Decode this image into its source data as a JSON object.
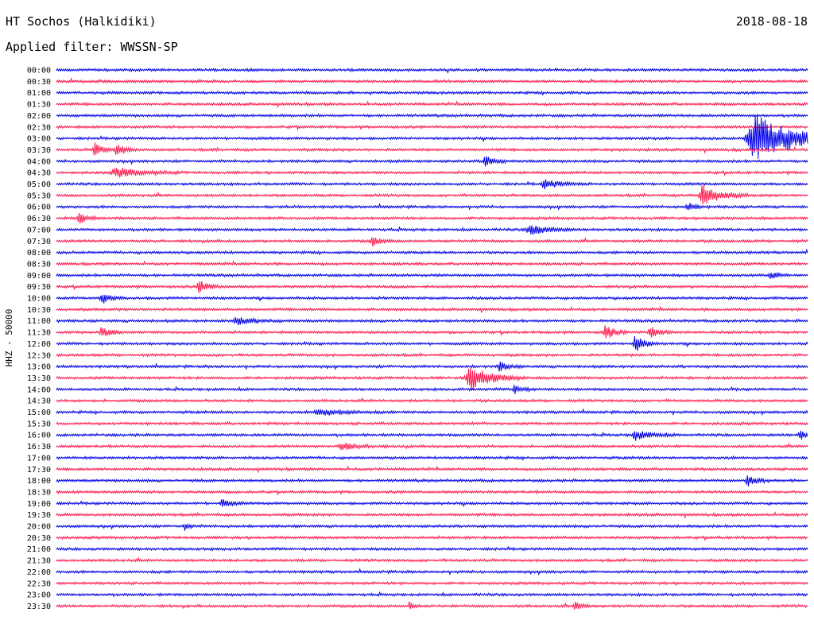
{
  "header": {
    "station": "HT Sochos (Halkidiki)",
    "date": "2018-08-18",
    "filter": "Applied filter: WWSSN-SP"
  },
  "chart_data": {
    "type": "line",
    "title": "HT Sochos (Halkidiki)",
    "ylabel": "HHZ - 50000",
    "colors": [
      "#0000e6",
      "#ff1a4d"
    ],
    "rows": [
      "00:00",
      "00:30",
      "01:00",
      "01:30",
      "02:00",
      "02:30",
      "03:00",
      "03:30",
      "04:00",
      "04:30",
      "05:00",
      "05:30",
      "06:00",
      "06:30",
      "07:00",
      "07:30",
      "08:00",
      "08:30",
      "09:00",
      "09:30",
      "10:00",
      "10:30",
      "11:00",
      "11:30",
      "12:00",
      "12:30",
      "13:00",
      "13:30",
      "14:00",
      "14:30",
      "15:00",
      "15:30",
      "16:00",
      "16:30",
      "17:00",
      "17:30",
      "18:00",
      "18:30",
      "19:00",
      "19:30",
      "20:00",
      "20:30",
      "21:00",
      "21:30",
      "22:00",
      "22:30",
      "23:00",
      "23:30"
    ],
    "events": [
      {
        "row": 6,
        "t": 0.93,
        "amp": 30,
        "width": 0.05
      },
      {
        "row": 7,
        "t": 0.05,
        "amp": 9,
        "width": 0.01
      },
      {
        "row": 7,
        "t": 0.08,
        "amp": 8,
        "width": 0.01
      },
      {
        "row": 8,
        "t": 0.57,
        "amp": 8,
        "width": 0.01
      },
      {
        "row": 9,
        "t": 0.08,
        "amp": 6,
        "width": 0.03
      },
      {
        "row": 10,
        "t": 0.65,
        "amp": 5,
        "width": 0.02
      },
      {
        "row": 11,
        "t": 0.86,
        "amp": 14,
        "width": 0.02
      },
      {
        "row": 12,
        "t": 0.84,
        "amp": 5,
        "width": 0.01
      },
      {
        "row": 13,
        "t": 0.03,
        "amp": 7,
        "width": 0.01
      },
      {
        "row": 14,
        "t": 0.63,
        "amp": 7,
        "width": 0.02
      },
      {
        "row": 15,
        "t": 0.42,
        "amp": 6,
        "width": 0.01
      },
      {
        "row": 18,
        "t": 0.95,
        "amp": 5,
        "width": 0.01
      },
      {
        "row": 19,
        "t": 0.19,
        "amp": 9,
        "width": 0.01
      },
      {
        "row": 20,
        "t": 0.06,
        "amp": 7,
        "width": 0.01
      },
      {
        "row": 22,
        "t": 0.24,
        "amp": 5,
        "width": 0.02
      },
      {
        "row": 23,
        "t": 0.06,
        "amp": 7,
        "width": 0.01
      },
      {
        "row": 23,
        "t": 0.73,
        "amp": 10,
        "width": 0.01
      },
      {
        "row": 23,
        "t": 0.79,
        "amp": 8,
        "width": 0.01
      },
      {
        "row": 24,
        "t": 0.77,
        "amp": 12,
        "width": 0.01
      },
      {
        "row": 26,
        "t": 0.59,
        "amp": 6,
        "width": 0.01
      },
      {
        "row": 27,
        "t": 0.55,
        "amp": 16,
        "width": 0.025
      },
      {
        "row": 28,
        "t": 0.61,
        "amp": 6,
        "width": 0.01
      },
      {
        "row": 30,
        "t": 0.35,
        "amp": 4,
        "width": 0.03
      },
      {
        "row": 32,
        "t": 0.77,
        "amp": 6,
        "width": 0.02
      },
      {
        "row": 32,
        "t": 0.99,
        "amp": 6,
        "width": 0.01
      },
      {
        "row": 33,
        "t": 0.38,
        "amp": 5,
        "width": 0.02
      },
      {
        "row": 36,
        "t": 0.92,
        "amp": 8,
        "width": 0.01
      },
      {
        "row": 38,
        "t": 0.22,
        "amp": 5,
        "width": 0.01
      },
      {
        "row": 40,
        "t": 0.17,
        "amp": 6,
        "width": 0.005
      },
      {
        "row": 47,
        "t": 0.47,
        "amp": 5,
        "width": 0.005
      },
      {
        "row": 47,
        "t": 0.69,
        "amp": 5,
        "width": 0.01
      }
    ]
  }
}
